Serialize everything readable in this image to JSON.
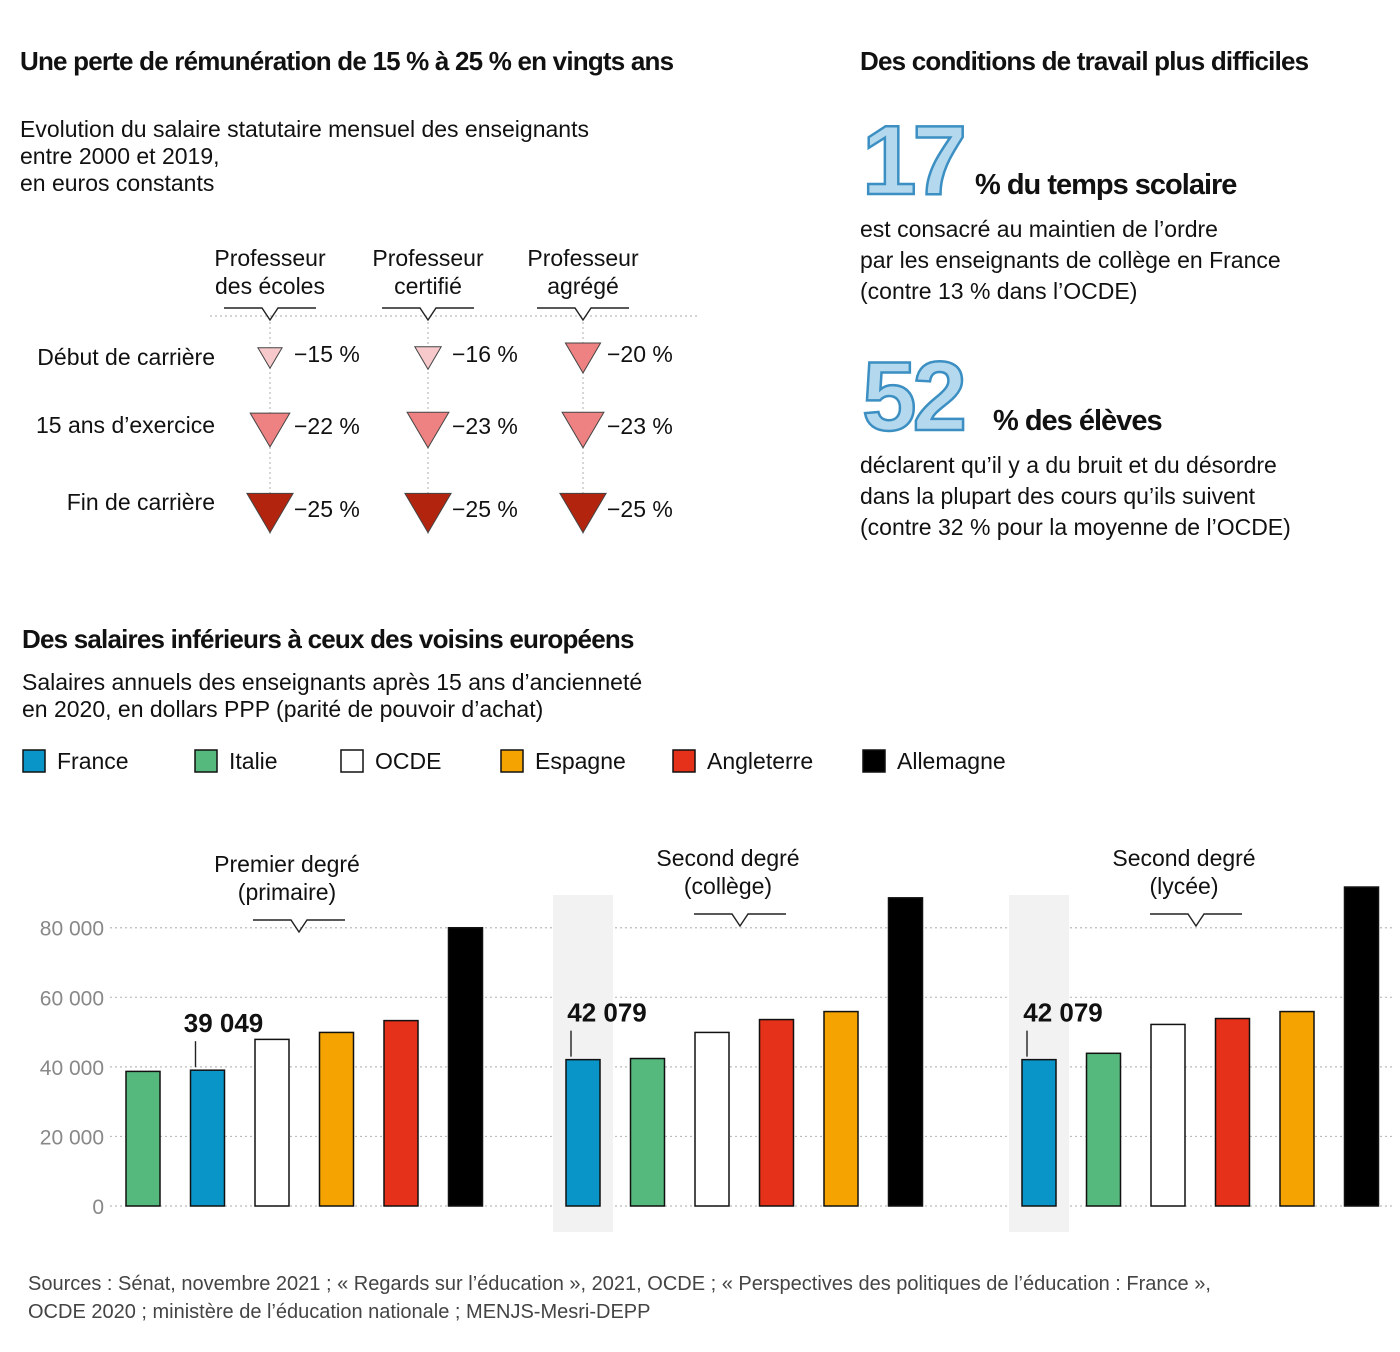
{
  "loss": {
    "title": "Une perte de rémunération de 15 % à 25 % en vingts ans",
    "subtitle": [
      "Evolution du salaire statutaire mensuel des enseignants",
      "entre 2000 et 2019,",
      "en euros constants"
    ],
    "columns": [
      [
        "Professeur",
        "des écoles"
      ],
      [
        "Professeur",
        "certifié"
      ],
      [
        "Professeur",
        "agrégé"
      ]
    ],
    "rows": [
      "Début de carrière",
      "15 ans d’exercice",
      "Fin de carrière"
    ],
    "values": [
      [
        -15,
        -16,
        -20
      ],
      [
        -22,
        -23,
        -23
      ],
      [
        -25,
        -25,
        -25
      ]
    ],
    "value_labels": [
      [
        "−15 %",
        "−16 %",
        "−20 %"
      ],
      [
        "−22 %",
        "−23 %",
        "−23 %"
      ],
      [
        "−25 %",
        "−25 %",
        "−25 %"
      ]
    ],
    "colors": [
      [
        "#f8c9cb",
        "#f8c9cb",
        "#ee8282"
      ],
      [
        "#ee8282",
        "#ee8282",
        "#ee8282"
      ],
      [
        "#b3240e",
        "#b3240e",
        "#b3240e"
      ]
    ]
  },
  "conditions": {
    "title": "Des conditions de travail  plus difficiles",
    "stats": [
      {
        "value": 17,
        "unit": "% du temps scolaire",
        "text": [
          "est consacré au maintien de l’ordre",
          "par les enseignants  de collège  en France",
          "(contre 13 % dans l’OCDE)"
        ]
      },
      {
        "value": 52,
        "unit": "% des élèves",
        "text": [
          "déclarent qu’il y a du bruit  et du désordre",
          "dans la plupart  des cours qu’ils suivent",
          "(contre 32 %  pour la moyenne de l’OCDE)"
        ]
      }
    ]
  },
  "comparison": {
    "title": "Des salaires inférieurs à ceux des voisins européens",
    "subtitle": [
      "Salaires annuels des enseignants après 15 ans d’ancienneté",
      "en 2020, en dollars PPP (parité de pouvoir d’achat)"
    ],
    "legend": [
      {
        "name": "France",
        "color": "#0a95c9"
      },
      {
        "name": "Italie",
        "color": "#55b97d"
      },
      {
        "name": "OCDE",
        "color": "#ffffff"
      },
      {
        "name": "Espagne",
        "color": "#f5a300"
      },
      {
        "name": "Angleterre",
        "color": "#e53119"
      },
      {
        "name": "Allemagne",
        "color": "#000000"
      }
    ],
    "ylim": [
      0,
      92000
    ],
    "yticks": [
      0,
      {
        "value": 20000,
        "label": "20 000"
      },
      {
        "value": 40000,
        "label": "40 000"
      },
      {
        "value": 60000,
        "label": "60 000"
      },
      {
        "value": 80000,
        "label": "80 000"
      }
    ],
    "grid": true
  },
  "chart_data": [
    {
      "type": "bar",
      "title": [
        "Premier degré",
        "(primaire)"
      ],
      "values": [
        38700,
        39049,
        47900,
        49900,
        53300,
        80000
      ],
      "value_labels": [
        null,
        "39 049",
        null,
        null,
        null,
        null
      ],
      "colors": [
        "#55b97d",
        "#0a95c9",
        "#ffffff",
        "#f5a300",
        "#e53119",
        "#000000"
      ]
    },
    {
      "type": "bar",
      "title": [
        "Second degré",
        "(collège)"
      ],
      "values": [
        42079,
        42400,
        49900,
        53600,
        55900,
        88600
      ],
      "value_labels": [
        "42 079",
        null,
        null,
        null,
        null,
        null
      ],
      "colors": [
        "#0a95c9",
        "#55b97d",
        "#ffffff",
        "#e53119",
        "#f5a300",
        "#000000"
      ],
      "highlight": 0
    },
    {
      "type": "bar",
      "title": [
        "Second degré",
        "(lycée)"
      ],
      "values": [
        42079,
        43900,
        52200,
        53900,
        55900,
        91700
      ],
      "value_labels": [
        "42 079",
        null,
        null,
        null,
        null,
        null
      ],
      "colors": [
        "#0a95c9",
        "#55b97d",
        "#ffffff",
        "#e53119",
        "#f5a300",
        "#000000"
      ],
      "highlight": 0
    }
  ],
  "source": [
    "Sources : Sénat, novembre 2021 ; « Regards sur l’éducation », 2021, OCDE ; « Perspectives des politiques de l’éducation : France »,",
    "OCDE 2020 ; ministère de l’éducation nationale ; MENJS-Mesri-DEPP"
  ]
}
